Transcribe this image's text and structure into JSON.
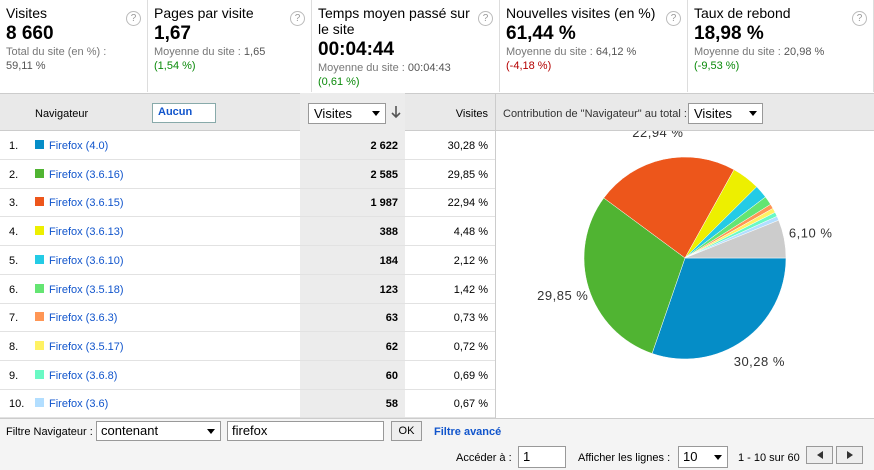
{
  "help_icon": "?",
  "metrics": [
    {
      "title": "Visites",
      "value": "8 660",
      "note": "Total du site (en %) :",
      "site_value": "59,11 %"
    },
    {
      "title": "Pages par visite",
      "value": "1,67",
      "note": "Moyenne du site :",
      "site_value": "1,65",
      "change": "(1,54 %)",
      "change_color": "#0a8a0a"
    },
    {
      "title": "Temps moyen passé sur le site",
      "value": "00:04:44",
      "note": "Moyenne du site :",
      "site_value": "00:04:43",
      "change": "(0,61 %)",
      "change_color": "#0a8a0a"
    },
    {
      "title": "Nouvelles visites (en %)",
      "value": "61,44 %",
      "note": "Moyenne du site :",
      "site_value": "64,12 %",
      "change": "(-4,18 %)",
      "change_color": "#b50000"
    },
    {
      "title": "Taux de rebond",
      "value": "18,98 %",
      "note": "Moyenne du site :",
      "site_value": "20,98 %",
      "change": "(-9,53 %)",
      "change_color": "#0a8a0a"
    }
  ],
  "table": {
    "dimension": "Navigateur",
    "secondary": "Aucun",
    "metric_select": "Visites",
    "metric_col": "Visites",
    "rows": [
      {
        "index": "1.",
        "name": "Firefox (4.0)",
        "color": "#058dc7",
        "visits": "2 622",
        "percent": "30,28 %"
      },
      {
        "index": "2.",
        "name": "Firefox (3.6.16)",
        "color": "#50b432",
        "visits": "2 585",
        "percent": "29,85 %"
      },
      {
        "index": "3.",
        "name": "Firefox (3.6.15)",
        "color": "#ed561b",
        "visits": "1 987",
        "percent": "22,94 %"
      },
      {
        "index": "4.",
        "name": "Firefox (3.6.13)",
        "color": "#edef00",
        "visits": "388",
        "percent": "4,48 %"
      },
      {
        "index": "5.",
        "name": "Firefox (3.6.10)",
        "color": "#24cbe5",
        "visits": "184",
        "percent": "2,12 %"
      },
      {
        "index": "6.",
        "name": "Firefox (3.5.18)",
        "color": "#64e572",
        "visits": "123",
        "percent": "1,42 %"
      },
      {
        "index": "7.",
        "name": "Firefox (3.6.3)",
        "color": "#ff9655",
        "visits": "63",
        "percent": "0,73 %"
      },
      {
        "index": "8.",
        "name": "Firefox (3.5.17)",
        "color": "#fff263",
        "visits": "62",
        "percent": "0,72 %"
      },
      {
        "index": "9.",
        "name": "Firefox (3.6.8)",
        "color": "#6af9c4",
        "visits": "60",
        "percent": "0,69 %"
      },
      {
        "index": "10.",
        "name": "Firefox (3.6)",
        "color": "#b2deff",
        "visits": "58",
        "percent": "0,67 %"
      }
    ]
  },
  "pie": {
    "type": "pie",
    "title": "Contribution de \"Navigateur\" au total :",
    "select": "Visites",
    "values": [
      30.28,
      29.85,
      22.94,
      4.48,
      2.12,
      1.42,
      0.73,
      0.72,
      0.69,
      0.67,
      6.1
    ],
    "value_labels": [
      "30,28 %",
      "29,85 %",
      "22,94 %",
      null,
      null,
      null,
      null,
      null,
      null,
      null,
      "6,10 %"
    ],
    "colors": [
      "#058dc7",
      "#50b432",
      "#ed561b",
      "#edef00",
      "#24cbe5",
      "#64e572",
      "#ff9655",
      "#fff263",
      "#6af9c4",
      "#b2deff",
      "#cccccc"
    ]
  },
  "footer": {
    "filter_label": "Filtre Navigateur :",
    "filter_mode": "contenant",
    "filter_text": "firefox",
    "ok": "OK",
    "advanced": "Filtre avancé",
    "goto_label": "Accéder à :",
    "goto_value": "1",
    "rows_label": "Afficher les lignes :",
    "rows_value": "10",
    "range": "1 - 10 sur 60"
  }
}
